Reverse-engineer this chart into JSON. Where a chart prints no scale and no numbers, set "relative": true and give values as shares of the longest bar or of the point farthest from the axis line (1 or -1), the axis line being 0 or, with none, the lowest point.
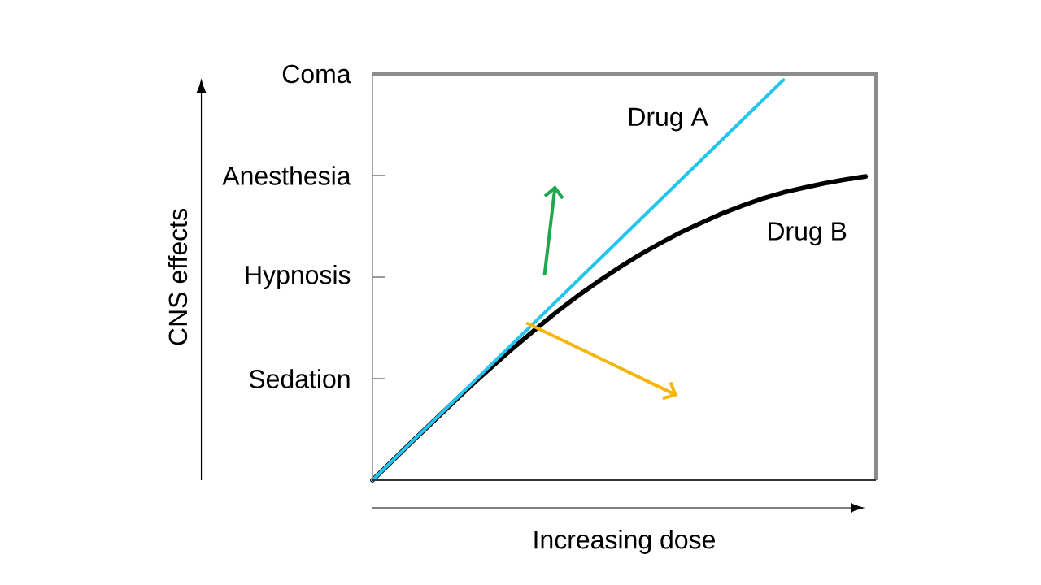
{
  "chart_data": {
    "type": "line",
    "xlabel": "Increasing dose",
    "relative": true,
    "categories": [
      null,
      null,
      null,
      null,
      null,
      null,
      null,
      null,
      null,
      null,
      null,
      null,
      null,
      null,
      null,
      null,
      null,
      null,
      null,
      null,
      null,
      null,
      null,
      null,
      null
    ],
    "series": [
      {
        "name": "Drug A",
        "color": "#22c4f0",
        "values": [
          0,
          0.05,
          0.1,
          0.15,
          0.2,
          0.25,
          0.3,
          0.35,
          0.4,
          0.45,
          0.5,
          0.55,
          0.6,
          0.65,
          0.7,
          0.75,
          0.8,
          0.85,
          0.9,
          0.95,
          1,
          null,
          null,
          null,
          null
        ]
      },
      {
        "name": "Drug B",
        "color": "#000000",
        "values": [
          0,
          0.05,
          0.1,
          0.149,
          0.198,
          0.246,
          0.292,
          0.337,
          0.38,
          0.422,
          0.461,
          0.497,
          0.531,
          0.563,
          0.592,
          0.619,
          0.643,
          0.666,
          0.686,
          0.704,
          0.719,
          0.731,
          0.742,
          0.751,
          0.759
        ]
      }
    ],
    "annotations": [
      "CNS effects",
      "Coma",
      "Anesthesia",
      "Hypnosis",
      "Sedation"
    ],
    "line_style": "solid"
  }
}
